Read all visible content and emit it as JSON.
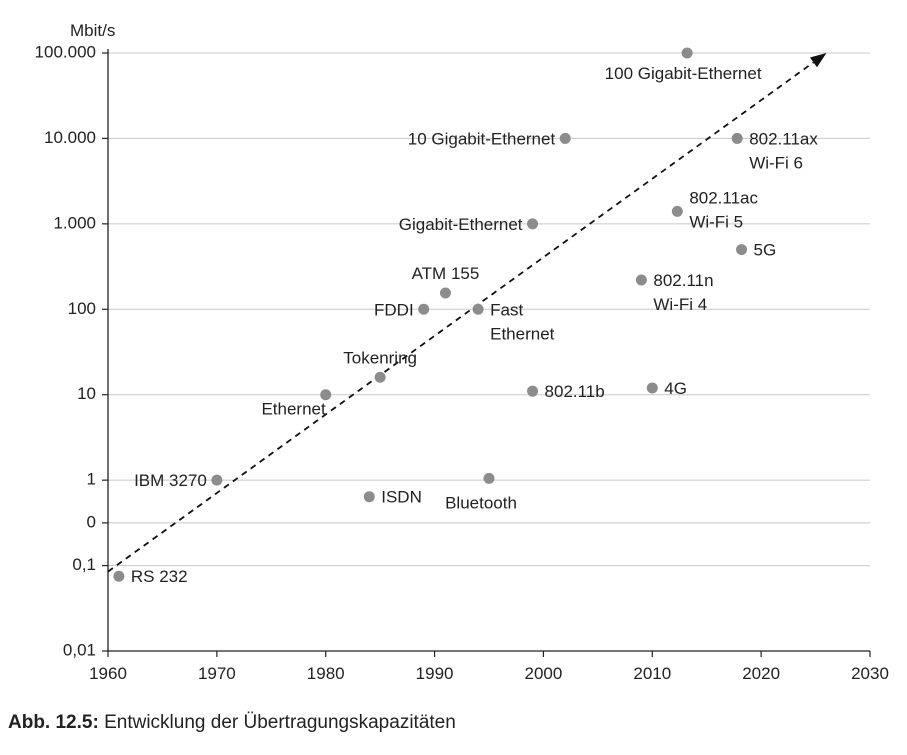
{
  "chart_data": {
    "type": "scatter",
    "title": "",
    "ylabel": "Mbit/s",
    "xlabel": "",
    "y_scale": "log",
    "xlim": [
      1960,
      2030
    ],
    "ylim": [
      0.01,
      100000
    ],
    "grid": "horizontal",
    "x_ticks": [
      "1960",
      "1970",
      "1980",
      "1990",
      "2000",
      "2010",
      "2020",
      "2030"
    ],
    "y_ticks": [
      {
        "value": 0.01,
        "label": "0,01"
      },
      {
        "value": 0.1,
        "label": "0,1"
      },
      {
        "value": 0.316,
        "label": "0"
      },
      {
        "value": 1,
        "label": "1"
      },
      {
        "value": 10,
        "label": "10"
      },
      {
        "value": 100,
        "label": "100"
      },
      {
        "value": 1000,
        "label": "1.000"
      },
      {
        "value": 10000,
        "label": "10.000"
      },
      {
        "value": 100000,
        "label": "100.000"
      }
    ],
    "points": [
      {
        "name": "RS 232",
        "lines": [
          "RS 232"
        ],
        "x": 1961,
        "y": 0.075,
        "label_pos": "right"
      },
      {
        "name": "IBM 3270",
        "lines": [
          "IBM 3270"
        ],
        "x": 1970,
        "y": 1,
        "label_pos": "left"
      },
      {
        "name": "Ethernet",
        "lines": [
          "Ethernet"
        ],
        "x": 1980,
        "y": 10,
        "label_pos": "below-left"
      },
      {
        "name": "Tokenring",
        "lines": [
          "Tokenring"
        ],
        "x": 1985,
        "y": 16,
        "label_pos": "above"
      },
      {
        "name": "ISDN",
        "lines": [
          "ISDN"
        ],
        "x": 1984,
        "y": 0.64,
        "label_pos": "right"
      },
      {
        "name": "FDDI",
        "lines": [
          "FDDI"
        ],
        "x": 1989,
        "y": 100,
        "label_pos": "left"
      },
      {
        "name": "ATM 155",
        "lines": [
          "ATM 155"
        ],
        "x": 1991,
        "y": 155,
        "label_pos": "above"
      },
      {
        "name": "Fast Ethernet",
        "lines": [
          "Fast",
          "Ethernet"
        ],
        "x": 1994,
        "y": 100,
        "label_pos": "right"
      },
      {
        "name": "Bluetooth",
        "lines": [
          "Bluetooth"
        ],
        "x": 1995,
        "y": 1.05,
        "label_pos": "below"
      },
      {
        "name": "Gigabit-Ethernet",
        "lines": [
          "Gigabit-Ethernet"
        ],
        "x": 1999,
        "y": 1000,
        "label_pos": "left"
      },
      {
        "name": "802.11b",
        "lines": [
          "802.11b"
        ],
        "x": 1999,
        "y": 11,
        "label_pos": "right"
      },
      {
        "name": "10 Gigabit-Ethernet",
        "lines": [
          "10 Gigabit-Ethernet"
        ],
        "x": 2002,
        "y": 10000,
        "label_pos": "left"
      },
      {
        "name": "802.11n Wi-Fi 4",
        "lines": [
          "802.11n",
          "Wi-Fi 4"
        ],
        "x": 2009,
        "y": 220,
        "label_pos": "right"
      },
      {
        "name": "4G",
        "lines": [
          "4G"
        ],
        "x": 2010,
        "y": 12,
        "label_pos": "right"
      },
      {
        "name": "802.11ac Wi-Fi 5",
        "lines": [
          "802.11ac",
          "Wi-Fi 5"
        ],
        "x": 2012.3,
        "y": 1400,
        "label_pos": "right-up"
      },
      {
        "name": "100 Gigabit-Ethernet",
        "lines": [
          "100 Gigabit-Ethernet"
        ],
        "x": 2013.2,
        "y": 100000,
        "label_pos": "below-left"
      },
      {
        "name": "802.11ax Wi-Fi 6",
        "lines": [
          "802.11ax",
          "Wi-Fi 6"
        ],
        "x": 2017.8,
        "y": 10000,
        "label_pos": "right"
      },
      {
        "name": "5G",
        "lines": [
          "5G"
        ],
        "x": 2018.2,
        "y": 500,
        "label_pos": "right"
      }
    ],
    "trend_arrow": {
      "from": {
        "x": 1960,
        "y": 0.085
      },
      "to": {
        "x": 2026,
        "y": 100000
      },
      "style": "dashed"
    },
    "colors": {
      "point": "#8c8c8c",
      "grid": "#c8c8c8",
      "axis": "#222222",
      "text": "#222222"
    }
  },
  "caption": {
    "label": "Abb. 12.5:",
    "text": "Entwicklung der Übertragungskapazitäten"
  }
}
